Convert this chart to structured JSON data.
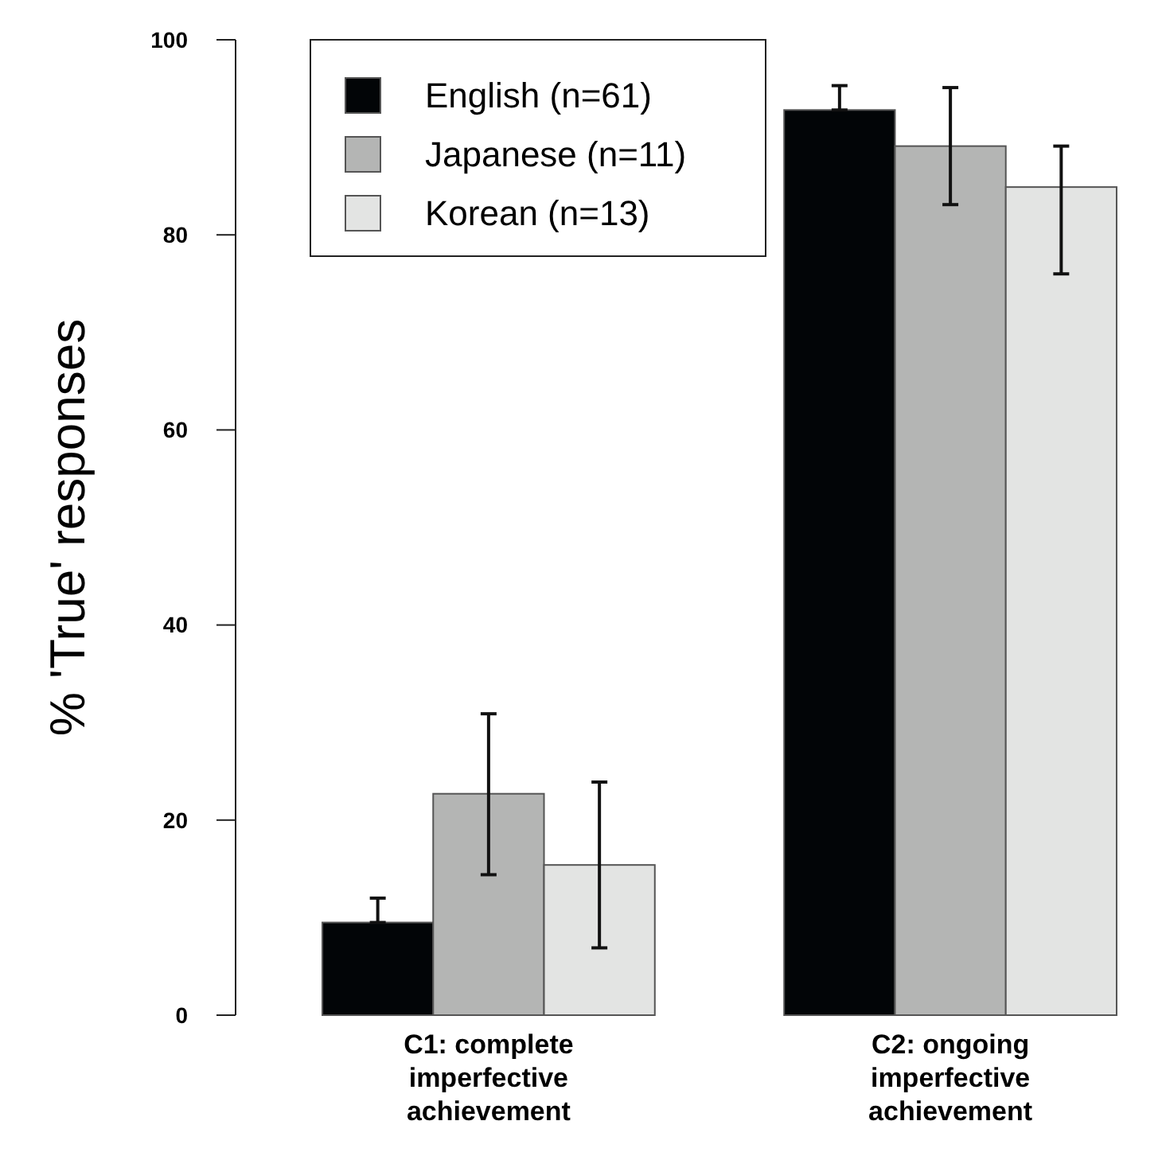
{
  "chart_data": {
    "type": "bar",
    "ylabel": "% 'True' responses",
    "categories": [
      "C1: complete\nimperfective\nachievement",
      "C2: ongoing\nimperfective\nachievement"
    ],
    "series": [
      {
        "name": "English (n=61)",
        "color": "#020507",
        "values": [
          9.5,
          92.8
        ],
        "errors": [
          [
            9.5,
            12.0
          ],
          [
            92.8,
            95.3
          ]
        ]
      },
      {
        "name": "Japanese (n=11)",
        "color": "#b4b5b4",
        "values": [
          22.7,
          89.1
        ],
        "errors": [
          [
            14.4,
            30.9
          ],
          [
            83.1,
            95.1
          ]
        ]
      },
      {
        "name": "Korean (n=13)",
        "color": "#e3e4e3",
        "values": [
          15.4,
          84.9
        ],
        "errors": [
          [
            6.9,
            23.9
          ],
          [
            76.0,
            89.1
          ]
        ]
      }
    ],
    "ylim": [
      0,
      100
    ],
    "yticks": [
      0,
      20,
      40,
      60,
      80,
      100
    ],
    "legend": "top left"
  }
}
